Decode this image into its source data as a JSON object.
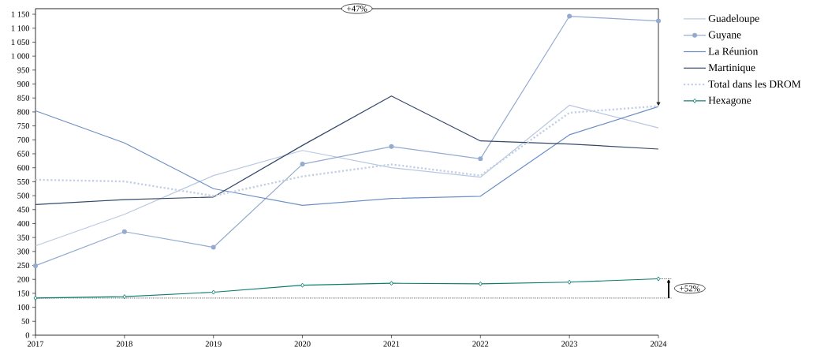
{
  "chart_data": {
    "type": "line",
    "x": [
      2017,
      2018,
      2019,
      2020,
      2021,
      2022,
      2023,
      2024
    ],
    "xlim": [
      2017,
      2024
    ],
    "xticks": [
      2017,
      2018,
      2019,
      2020,
      2021,
      2022,
      2023,
      2024
    ],
    "ylim": [
      0,
      1170
    ],
    "yticks": [
      0,
      50,
      100,
      150,
      200,
      250,
      300,
      350,
      400,
      450,
      500,
      550,
      600,
      650,
      700,
      750,
      800,
      850,
      900,
      950,
      {
        "value": 1000,
        "label": "1 000"
      },
      {
        "value": 1050,
        "label": "1 050"
      },
      {
        "value": 1100,
        "label": "1 100"
      },
      {
        "value": 1150,
        "label": "1 150"
      }
    ],
    "series": [
      {
        "name": "Guadeloupe",
        "color": "#b8c8e0",
        "values": [
          320,
          433,
          572,
          662,
          600,
          566,
          824,
          743
        ]
      },
      {
        "name": "Guyane",
        "color": "#95aad0",
        "marker": "circle",
        "values": [
          249,
          371,
          315,
          613,
          676,
          632,
          1143,
          1126
        ]
      },
      {
        "name": "La Réunion",
        "color": "#6d8fc6",
        "values": [
          804,
          689,
          525,
          465,
          490,
          498,
          718,
          819
        ]
      },
      {
        "name": "Martinique",
        "color": "#34496a",
        "values": [
          468,
          486,
          495,
          680,
          857,
          696,
          685,
          667
        ]
      },
      {
        "name": "Total dans les DROM",
        "color": "#c4cfe6",
        "line_style": "dotted",
        "values": [
          557,
          551,
          499,
          569,
          612,
          572,
          797,
          821
        ]
      },
      {
        "name": "Hexagone",
        "color": "#0b7d71",
        "marker": "diamond",
        "values": [
          133,
          138,
          154,
          179,
          186,
          184,
          190,
          202
        ]
      }
    ],
    "ref_lines": [
      {
        "axis": "y",
        "value": 133,
        "color": "#000000",
        "line_style": "dotted"
      }
    ],
    "annotations": [
      "+47%",
      {
        "text": "+52%",
        "x": 2024,
        "y": 202
      }
    ],
    "legend": "top right"
  }
}
